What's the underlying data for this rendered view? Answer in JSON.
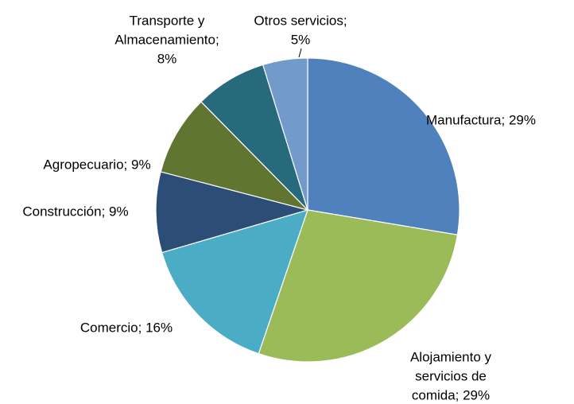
{
  "chart_data": {
    "type": "pie",
    "values": [
      29,
      29,
      16,
      9,
      9,
      8,
      5
    ],
    "value_labels": [
      [
        "Manufactura; 29%"
      ],
      [
        "Alojamiento y",
        "servicios de",
        "comida; 29%"
      ],
      [
        "Comercio; 16%"
      ],
      [
        "Construcción; 9%"
      ],
      [
        "Agropecuario; 9%"
      ],
      [
        "Transporte y",
        "Almacenamiento;",
        "8%"
      ],
      [
        "Otros servicios;",
        "5%"
      ]
    ],
    "colors": [
      "#4f81bd",
      "#9bbb59",
      "#4bacc6",
      "#2c4d75",
      "#5f7530",
      "#276a7c",
      "#729aca"
    ]
  }
}
